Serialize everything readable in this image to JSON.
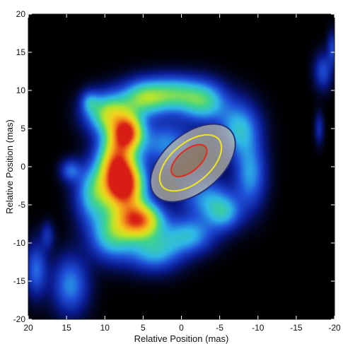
{
  "chart_data": {
    "type": "heatmap",
    "title": "",
    "xlabel": "Relative Position (mas)",
    "ylabel": "Relative Position (mas)",
    "xlim": [
      20,
      -20
    ],
    "ylim": [
      -20,
      20
    ],
    "x_ticks": [
      20,
      15,
      10,
      5,
      0,
      -5,
      -10,
      -15,
      -20
    ],
    "y_ticks": [
      20,
      15,
      10,
      5,
      0,
      -5,
      -10,
      -15,
      -20
    ],
    "x_tick_labels": [
      "20",
      "15",
      "10",
      "5",
      "0",
      "-5",
      "-10",
      "-15",
      "-20"
    ],
    "y_tick_labels": [
      "20",
      "15",
      "10",
      "5",
      "0",
      "-5",
      "-10",
      "-15",
      "-20"
    ],
    "background_color": "#000000",
    "colormap": "jet",
    "colormap_stops": [
      "#000000",
      "#0a1a8c",
      "#1f4fd8",
      "#2fb8e8",
      "#3fd48c",
      "#b9e52a",
      "#f2d21c",
      "#f28a1c",
      "#d81e14"
    ],
    "emission_blobs": [
      {
        "x": 7.5,
        "y": -2.5,
        "sx": 1.8,
        "sy": 2.2,
        "intensity": 1.0
      },
      {
        "x": 5.5,
        "y": -7.0,
        "sx": 2.0,
        "sy": 1.6,
        "intensity": 0.85
      },
      {
        "x": 8.5,
        "y": 1.0,
        "sx": 1.6,
        "sy": 2.6,
        "intensity": 0.7
      },
      {
        "x": 7.0,
        "y": 4.5,
        "sx": 1.4,
        "sy": 1.6,
        "intensity": 0.8
      },
      {
        "x": 9.5,
        "y": 7.0,
        "sx": 2.0,
        "sy": 1.8,
        "intensity": 0.55
      },
      {
        "x": 5.0,
        "y": 9.0,
        "sx": 2.0,
        "sy": 1.6,
        "intensity": 0.45
      },
      {
        "x": 1.0,
        "y": 9.5,
        "sx": 2.4,
        "sy": 1.6,
        "intensity": 0.42
      },
      {
        "x": -3.0,
        "y": 8.5,
        "sx": 2.0,
        "sy": 1.8,
        "intensity": 0.4
      },
      {
        "x": -7.5,
        "y": 5.0,
        "sx": 1.8,
        "sy": 2.4,
        "intensity": 0.35
      },
      {
        "x": -9.0,
        "y": -1.0,
        "sx": 1.4,
        "sy": 3.0,
        "intensity": 0.3
      },
      {
        "x": -5.5,
        "y": -6.0,
        "sx": 1.6,
        "sy": 1.6,
        "intensity": 0.32
      },
      {
        "x": -1.0,
        "y": -9.0,
        "sx": 2.2,
        "sy": 1.6,
        "intensity": 0.32
      },
      {
        "x": 3.5,
        "y": -11.0,
        "sx": 2.4,
        "sy": 1.8,
        "intensity": 0.35
      },
      {
        "x": 9.0,
        "y": -9.0,
        "sx": 2.0,
        "sy": 2.2,
        "intensity": 0.4
      },
      {
        "x": 11.5,
        "y": -3.5,
        "sx": 1.6,
        "sy": 2.6,
        "intensity": 0.38
      },
      {
        "x": 2.0,
        "y": 3.0,
        "sx": 2.5,
        "sy": 2.0,
        "intensity": 0.28
      },
      {
        "x": -3.0,
        "y": -4.0,
        "sx": 2.2,
        "sy": 2.0,
        "intensity": 0.26
      },
      {
        "x": 14.5,
        "y": -15.5,
        "sx": 1.6,
        "sy": 2.6,
        "intensity": 0.28
      },
      {
        "x": 19.0,
        "y": -13.5,
        "sx": 1.0,
        "sy": 2.4,
        "intensity": 0.24
      },
      {
        "x": 14.5,
        "y": -0.5,
        "sx": 0.9,
        "sy": 1.0,
        "intensity": 0.22
      },
      {
        "x": 12.0,
        "y": 8.5,
        "sx": 0.8,
        "sy": 1.0,
        "intensity": 0.2
      },
      {
        "x": -18.5,
        "y": 12.5,
        "sx": 0.8,
        "sy": 1.6,
        "intensity": 0.2
      },
      {
        "x": -19.8,
        "y": 15.5,
        "sx": 0.5,
        "sy": 1.5,
        "intensity": 0.18
      },
      {
        "x": -18.0,
        "y": 5.0,
        "sx": 0.4,
        "sy": 1.4,
        "intensity": 0.14
      },
      {
        "x": 17.5,
        "y": -9.0,
        "sx": 0.6,
        "sy": 1.2,
        "intensity": 0.14
      }
    ],
    "overlay_ellipses": [
      {
        "cx": -1.5,
        "cy": 0.5,
        "rx": 6.5,
        "ry": 3.8,
        "angle": -40,
        "fill": "#b8b8a8",
        "fill_opacity": 0.75,
        "stroke": "#24307a"
      },
      {
        "cx": -1.2,
        "cy": 0.5,
        "rx": 4.8,
        "ry": 2.6,
        "angle": -40,
        "fill": "none",
        "fill_opacity": 0,
        "stroke": "#f2e620"
      },
      {
        "cx": -1.0,
        "cy": 0.8,
        "rx": 2.8,
        "ry": 1.4,
        "angle": -40,
        "fill": "#8a6a48",
        "fill_opacity": 0.55,
        "stroke": "#e22a20"
      }
    ]
  }
}
